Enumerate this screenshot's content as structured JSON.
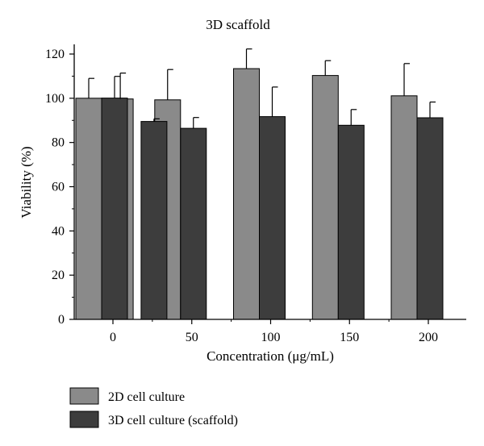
{
  "chart_data": {
    "type": "bar",
    "title": "3D scaffold",
    "xlabel": "Concentration (μg/mL)",
    "ylabel": "Viability (%)",
    "ylim": [
      0,
      125
    ],
    "yticks": [
      0,
      20,
      40,
      60,
      80,
      100,
      120
    ],
    "grid": false,
    "legend_position": "bottom-left",
    "series": [
      {
        "name": "2D cell culture",
        "color": "#8a8a8a",
        "points": [
          {
            "x": 0,
            "value": 100,
            "error": 9
          },
          {
            "x": 20,
            "value": 99.7,
            "error": 11.7
          },
          {
            "x": 50,
            "value": 99.3,
            "error": 13.7
          },
          {
            "x": 100,
            "value": 113.4,
            "error": 8.9
          },
          {
            "x": 150,
            "value": 110.3,
            "error": 6.7
          },
          {
            "x": 200,
            "value": 101.1,
            "error": 14.6
          }
        ]
      },
      {
        "name": "3D cell culture (scaffold)",
        "color": "#3d3d3d",
        "points": [
          {
            "x": 0,
            "value": 100.1,
            "error": 9.8
          },
          {
            "x": 25,
            "value": 89.5,
            "error": 1.2
          },
          {
            "x": 50,
            "value": 86.4,
            "error": 4.9
          },
          {
            "x": 100,
            "value": 91.7,
            "error": 13.4
          },
          {
            "x": 150,
            "value": 87.8,
            "error": 7.1
          },
          {
            "x": 200,
            "value": 91.2,
            "error": 7.1
          }
        ]
      }
    ],
    "xticks": [
      0,
      50,
      100,
      150,
      200
    ]
  }
}
